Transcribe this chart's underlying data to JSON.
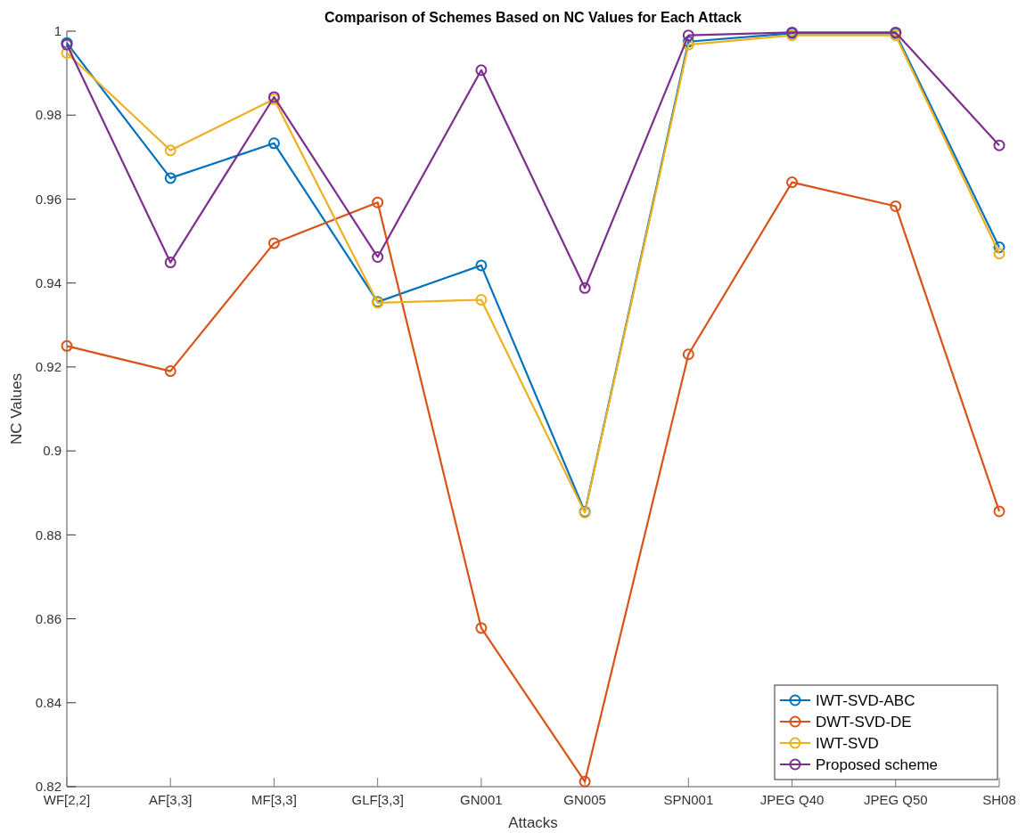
{
  "chart_data": {
    "type": "line",
    "title": "Comparison of Schemes Based on NC Values for Each Attack",
    "xlabel": "Attacks",
    "ylabel": "NC Values",
    "categories": [
      "WF[2,2]",
      "AF[3,3]",
      "MF[3,3]",
      "GLF[3,3]",
      "GN001",
      "GN005",
      "SPN001",
      "JPEG Q40",
      "JPEG Q50",
      "SH08"
    ],
    "series": [
      {
        "name": "IWT-SVD-ABC",
        "color": "#0072bd",
        "values": [
          0.9972,
          0.965,
          0.9733,
          0.9355,
          0.9442,
          0.8855,
          0.9975,
          0.9995,
          0.9995,
          0.9485
        ]
      },
      {
        "name": "DWT-SVD-DE",
        "color": "#d95319",
        "values": [
          0.925,
          0.919,
          0.9495,
          0.9592,
          0.8578,
          0.8212,
          0.923,
          0.964,
          0.9583,
          0.8856
        ]
      },
      {
        "name": "IWT-SVD",
        "color": "#edb120",
        "values": [
          0.9948,
          0.9716,
          0.9838,
          0.9353,
          0.936,
          0.8853,
          0.9968,
          0.999,
          0.999,
          0.947
        ]
      },
      {
        "name": "Proposed scheme",
        "color": "#7e2f8e",
        "values": [
          0.9968,
          0.9449,
          0.9843,
          0.9462,
          0.9907,
          0.9388,
          0.999,
          0.9997,
          0.9997,
          0.9728
        ]
      }
    ],
    "ylim": [
      0.82,
      1
    ],
    "yticks": [
      0.82,
      0.84,
      0.86,
      0.88,
      0.9,
      0.92,
      0.94,
      0.96,
      0.98,
      1
    ],
    "grid": false,
    "legend": "bottom right",
    "marker": "circle",
    "line_style": "solid"
  }
}
